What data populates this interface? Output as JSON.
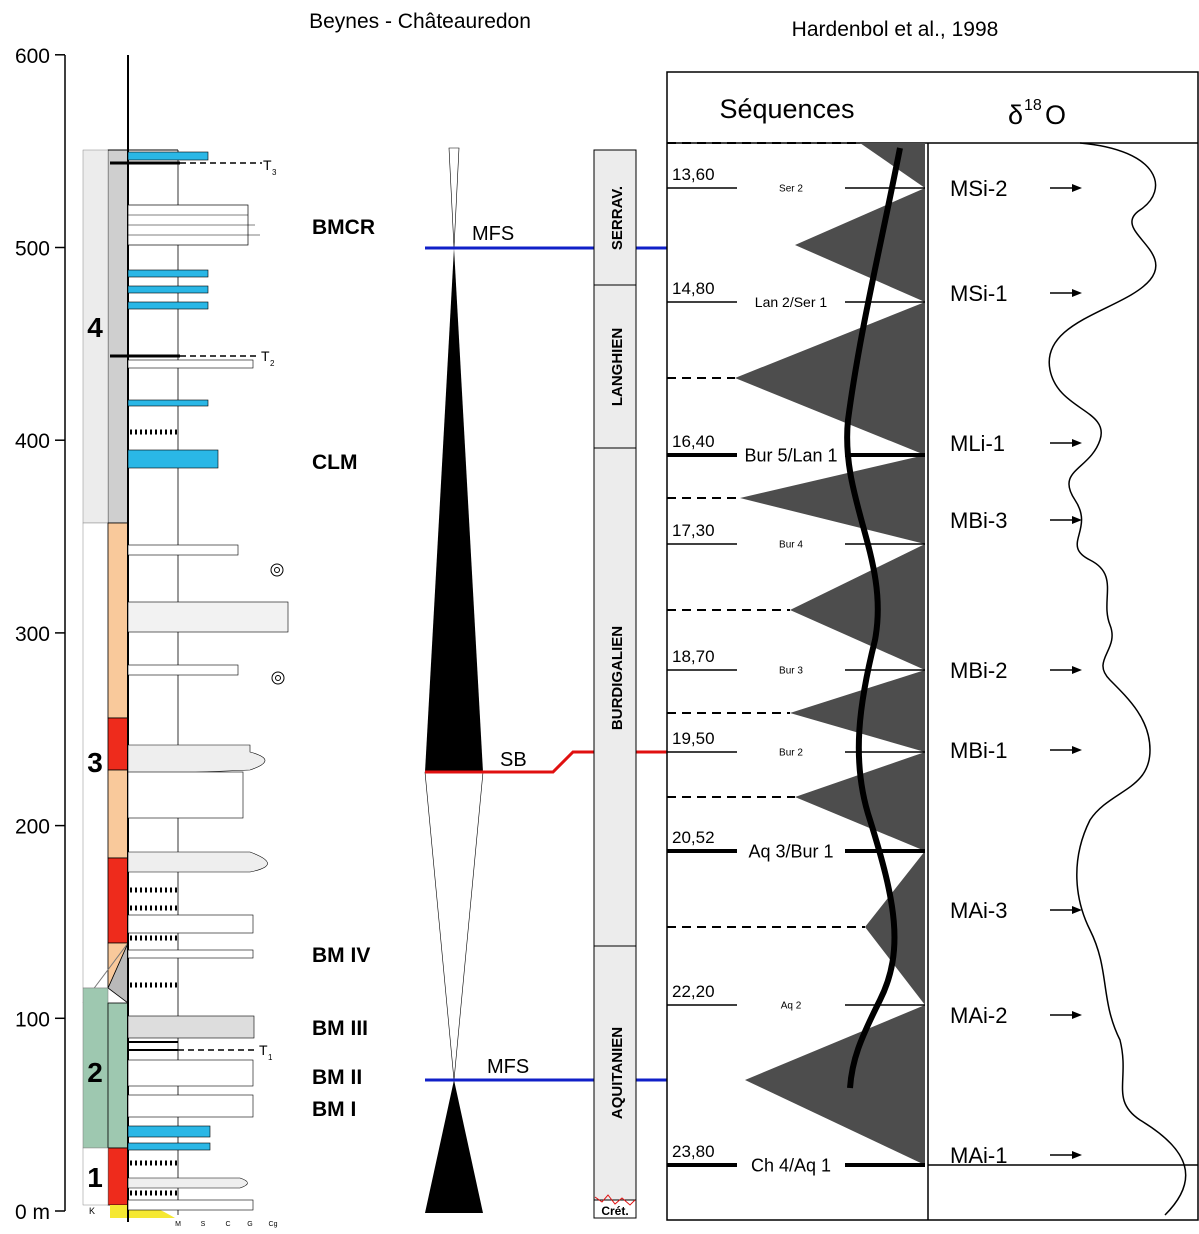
{
  "titles": {
    "section": "Beynes - Châteauredon",
    "reference": "Hardenbol et al., 1998"
  },
  "axis": {
    "ticks": [
      {
        "value": 0,
        "label": "0 m"
      },
      100,
      200,
      300,
      400,
      500,
      600
    ]
  },
  "units": [
    "1",
    "2",
    "3",
    "4"
  ],
  "basement": "K",
  "grain_sizes": [
    "M",
    "S",
    "C",
    "G",
    "Cg"
  ],
  "markers": [
    {
      "letter": "T",
      "index": "3"
    },
    {
      "letter": "T",
      "index": "2"
    },
    {
      "letter": "T",
      "index": "1"
    }
  ],
  "beds": [
    "BMCR",
    "CLM",
    "BM IV",
    "BM III",
    "BM II",
    "BM I"
  ],
  "surfaces": [
    "MFS",
    "SB",
    "MFS"
  ],
  "stages": [
    "SERRAV.",
    "LANGHIEN",
    "BURDIGALIEN",
    "AQUITANIEN",
    "Crét."
  ],
  "columns": {
    "sequences": "Séquences",
    "isotope": [
      "δ",
      "18",
      "O"
    ]
  },
  "boundaries": [
    {
      "age": "13,60",
      "name": "Ser 2"
    },
    {
      "age": "14,80",
      "name": "Lan 2/Ser 1"
    },
    {
      "age": "16,40",
      "name": "Bur 5/Lan 1"
    },
    {
      "age": "17,30",
      "name": "Bur 4"
    },
    {
      "age": "18,70",
      "name": "Bur 3"
    },
    {
      "age": "19,50",
      "name": "Bur 2"
    },
    {
      "age": "20,52",
      "name": "Aq 3/Bur 1"
    },
    {
      "age": "22,20",
      "name": "Aq 2"
    },
    {
      "age": "23,80",
      "name": "Ch 4/Aq 1"
    }
  ],
  "events": [
    "MSi-2",
    "MSi-1",
    "MLi-1",
    "MBi-3",
    "MBi-2",
    "MBi-1",
    "MAi-3",
    "MAi-2",
    "MAi-1"
  ]
}
